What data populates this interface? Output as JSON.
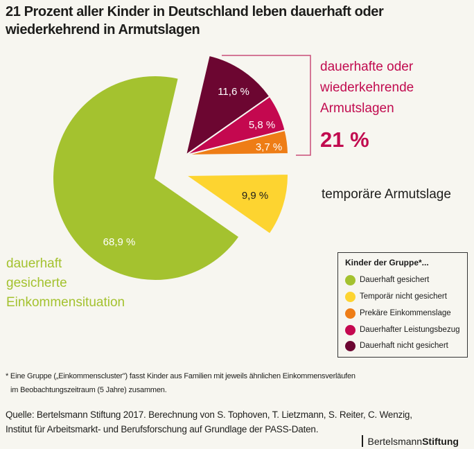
{
  "title": "21 Prozent aller Kinder in Deutschland leben dauerhaft oder wiederkehrend in Armutslagen",
  "colors": {
    "background": "#f7f6f0",
    "accent_red": "#c10b4f",
    "green": "#a4c22f",
    "yellow": "#fdd430",
    "orange": "#ee7d16",
    "pink": "#c4084f",
    "maroon": "#6c0631"
  },
  "chart_data": {
    "type": "pie",
    "title": "21 Prozent aller Kinder in Deutschland leben dauerhaft oder wiederkehrend in Armutslagen",
    "unit": "%",
    "slices": [
      {
        "name": "Dauerhaft nicht gesichert",
        "value": 11.6,
        "label": "11,6 %",
        "color": "#6c0631",
        "group": "dauerhafte oder wiederkehrende Armutslagen"
      },
      {
        "name": "Dauerhafter Leistungsbezug",
        "value": 5.8,
        "label": "5,8 %",
        "color": "#c4084f",
        "group": "dauerhafte oder wiederkehrende Armutslagen"
      },
      {
        "name": "Prekäre Einkommenslage",
        "value": 3.7,
        "label": "3,7 %",
        "color": "#ee7d16",
        "group": "dauerhafte oder wiederkehrende Armutslagen"
      },
      {
        "name": "Temporär nicht gesichert",
        "value": 9.9,
        "label": "9,9 %",
        "color": "#fdd430",
        "group": "temporäre Armutslage"
      },
      {
        "name": "Dauerhaft gesichert",
        "value": 68.9,
        "label": "68,9 %",
        "color": "#a4c22f",
        "group": "dauerhaft gesicherte Einkommensituation"
      }
    ],
    "annotations": {
      "poverty_group_label": [
        "dauerhafte oder",
        "wiederkehrende",
        "Armutslagen"
      ],
      "poverty_group_total": "21 %",
      "temporary_label": "temporäre Armutslage",
      "secure_label": [
        "dauerhaft",
        "gesicherte",
        "Einkommensituation"
      ]
    },
    "legend": {
      "title": "Kinder der Gruppe*...",
      "placement": "bottom-right",
      "items": [
        {
          "label": "Dauerhaft gesichert",
          "color": "#a4c22f"
        },
        {
          "label": "Temporär nicht gesichert",
          "color": "#fdd430"
        },
        {
          "label": "Prekäre Einkommenslage",
          "color": "#ee7d16"
        },
        {
          "label": "Dauerhafter Leistungsbezug",
          "color": "#c4084f"
        },
        {
          "label": "Dauerhaft nicht gesichert",
          "color": "#6c0631"
        }
      ]
    }
  },
  "footnote": {
    "line1": "* Eine Gruppe („Einkommenscluster\") fasst Kinder aus Familien mit jeweils ähnlichen Einkommensverläufen",
    "line2": "im Beobachtungszeitraum (5 Jahre) zusammen."
  },
  "source": {
    "line1": "Quelle: Bertelsmann Stiftung 2017. Berechnung von S. Tophoven, T. Lietzmann, S. Reiter, C. Wenzig,",
    "line2": "Institut für Arbeitsmarkt- und Berufsforschung auf Grundlage der PASS-Daten."
  },
  "logo": {
    "part1": "Bertelsmann",
    "part2": "Stiftung"
  }
}
